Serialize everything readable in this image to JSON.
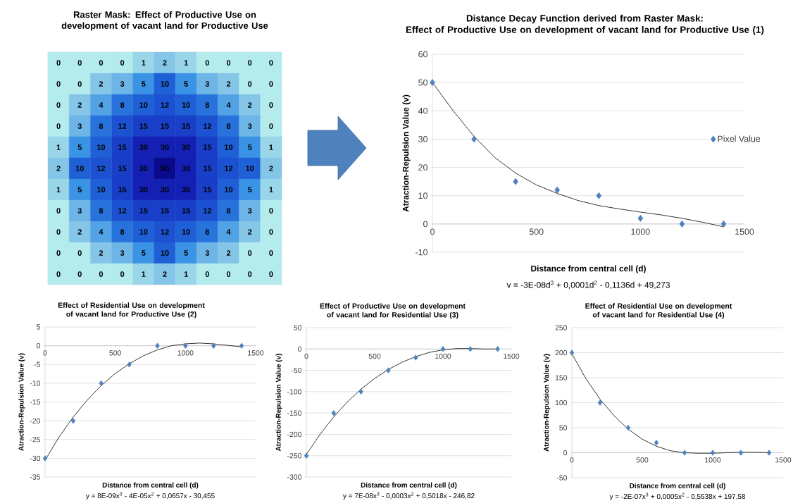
{
  "chart_data": [
    {
      "type": "heatmap",
      "title": "Raster Mask: Effect of Productive Use on development of vacant land for Productive Use",
      "categories": [
        null,
        null,
        null,
        null,
        null,
        null,
        null,
        null,
        null,
        null,
        null
      ],
      "y_categories": [
        null,
        null,
        null,
        null,
        null,
        null,
        null,
        null,
        null,
        null,
        null
      ],
      "data_labels": true,
      "cells": [
        [
          0,
          0,
          0,
          0,
          1,
          2,
          1,
          0,
          0,
          0,
          0
        ],
        [
          0,
          0,
          2,
          3,
          5,
          10,
          5,
          3,
          2,
          0,
          0
        ],
        [
          0,
          2,
          4,
          8,
          10,
          12,
          10,
          8,
          4,
          2,
          0
        ],
        [
          0,
          3,
          8,
          12,
          15,
          15,
          15,
          12,
          8,
          3,
          0
        ],
        [
          1,
          5,
          10,
          15,
          30,
          30,
          30,
          15,
          10,
          5,
          1
        ],
        [
          2,
          10,
          12,
          15,
          30,
          50,
          30,
          15,
          12,
          10,
          2
        ],
        [
          1,
          5,
          10,
          15,
          30,
          30,
          30,
          15,
          10,
          5,
          1
        ],
        [
          0,
          3,
          8,
          12,
          15,
          15,
          15,
          12,
          8,
          3,
          0
        ],
        [
          0,
          2,
          4,
          8,
          10,
          12,
          10,
          8,
          4,
          2,
          0
        ],
        [
          0,
          0,
          2,
          3,
          5,
          10,
          5,
          3,
          2,
          0,
          0
        ],
        [
          0,
          0,
          0,
          0,
          1,
          2,
          1,
          0,
          0,
          0,
          0
        ]
      ]
    },
    {
      "type": "scatter",
      "title": "Distance Decay Function derived from Raster Mask:",
      "subtitle": "Effect of Productive Use on development of vacant land for Productive Use (1)",
      "xlabel": "Distance from central cell (d)",
      "ylabel": "Atraction-Repulsion Value (v)",
      "annotations": [
        "v = -3E-08d$^{3}$ + 0,0001d$^{2}$ - 0,1136d + 49,273"
      ],
      "xlim": [
        0,
        1500
      ],
      "ylim": [
        -10,
        60
      ],
      "xticks": [
        0,
        500,
        1000,
        1500
      ],
      "yticks": [
        -10,
        0,
        10,
        20,
        30,
        40,
        50,
        60
      ],
      "grid": "y",
      "legend": "right",
      "series": [
        {
          "name": "Pixel Value",
          "type": "scatter",
          "marker": "diamond",
          "color": "#4f81bd",
          "x": [
            0,
            200,
            400,
            600,
            800,
            1000,
            1200,
            1400
          ],
          "values": [
            50,
            30,
            15,
            12,
            10,
            2,
            0,
            0
          ]
        },
        {
          "type": "line",
          "marker": "none",
          "color": "#000000",
          "x": [
            0,
            100,
            200,
            300,
            400,
            500,
            600,
            700,
            800,
            900,
            1000,
            1100,
            1200,
            1300,
            1400
          ],
          "values": [
            50,
            40,
            31,
            23.5,
            18,
            13.8,
            10.8,
            8.3,
            6.5,
            5.3,
            4.2,
            3.2,
            2,
            0.6,
            -1
          ]
        }
      ]
    },
    {
      "type": "scatter",
      "title": "Effect of Residential Use on development of vacant land for Productive Use (2)",
      "xlabel": "Distance from central cell (d)",
      "ylabel": "Atraction-Repulsion Value (v)",
      "annotations": [
        "y = 8E-09x$^{3}$ - 4E-05x$^{2}$ + 0,0657x - 30,455"
      ],
      "xlim": [
        0,
        1500
      ],
      "ylim": [
        -35,
        5
      ],
      "xticks": [
        0,
        500,
        1000,
        1500
      ],
      "yticks": [
        -35,
        -30,
        -25,
        -20,
        -15,
        -10,
        -5,
        0,
        5
      ],
      "grid": "y",
      "series": [
        {
          "type": "scatter",
          "marker": "diamond",
          "color": "#4f81bd",
          "x": [
            0,
            200,
            400,
            600,
            800,
            1000,
            1200,
            1400
          ],
          "values": [
            -30,
            -20,
            -10,
            -5,
            0,
            0,
            0,
            0
          ]
        },
        {
          "type": "line",
          "marker": "none",
          "color": "#000000",
          "x": [
            0,
            100,
            200,
            300,
            400,
            500,
            600,
            700,
            800,
            900,
            1000,
            1100,
            1200,
            1300,
            1400
          ],
          "values": [
            -30.5,
            -24.3,
            -19,
            -14.5,
            -10.6,
            -7.4,
            -4.8,
            -2.7,
            -1.1,
            0,
            0.5,
            0.7,
            0.5,
            0.1,
            -0.3
          ]
        }
      ]
    },
    {
      "type": "scatter",
      "title": "Effect of Productive Use on development of vacant land for Residential Use (3)",
      "xlabel": "Distance from central cell (d)",
      "ylabel": "Atraction-Repulsion Value (v)",
      "annotations": [
        "y = 7E-08x$^{3}$ - 0,0003x$^{2}$ + 0,5018x - 246,82"
      ],
      "xlim": [
        0,
        1500
      ],
      "ylim": [
        -300,
        50
      ],
      "xticks": [
        0,
        500,
        1000,
        1500
      ],
      "yticks": [
        -300,
        -250,
        -200,
        -150,
        -100,
        -50,
        0,
        50
      ],
      "grid": "y",
      "series": [
        {
          "type": "scatter",
          "marker": "diamond",
          "color": "#4f81bd",
          "x": [
            0,
            200,
            400,
            600,
            800,
            1000,
            1200,
            1400
          ],
          "values": [
            -250,
            -150,
            -100,
            -50,
            -20,
            0,
            0,
            0
          ]
        },
        {
          "type": "line",
          "marker": "none",
          "color": "#000000",
          "x": [
            0,
            100,
            200,
            300,
            400,
            500,
            600,
            700,
            800,
            900,
            1000,
            1100,
            1200,
            1300,
            1400
          ],
          "values": [
            -247,
            -200,
            -159,
            -124,
            -94,
            -69,
            -48,
            -31,
            -18,
            -8,
            -2,
            1,
            1,
            0,
            0
          ]
        }
      ]
    },
    {
      "type": "scatter",
      "title": "Effect of Residential Use on development of vacant land for Residential Use (4)",
      "xlabel": "Distance from central cell (d)",
      "ylabel": "Atraction-Repulsion Value (v)",
      "annotations": [
        "y = -2E-07x$^{3}$ + 0,0005x$^{2}$ - 0,5538x + 197,58"
      ],
      "xlim": [
        0,
        1500
      ],
      "ylim": [
        -50,
        250
      ],
      "xticks": [
        0,
        500,
        1000,
        1500
      ],
      "yticks": [
        -50,
        0,
        50,
        100,
        150,
        200,
        250
      ],
      "grid": "y",
      "series": [
        {
          "type": "scatter",
          "marker": "diamond",
          "color": "#4f81bd",
          "x": [
            0,
            200,
            400,
            600,
            800,
            1000,
            1200,
            1400
          ],
          "values": [
            200,
            100,
            50,
            20,
            0,
            0,
            0,
            0
          ]
        },
        {
          "type": "line",
          "marker": "none",
          "color": "#000000",
          "x": [
            0,
            100,
            200,
            300,
            400,
            500,
            600,
            700,
            800,
            900,
            1000,
            1100,
            1200,
            1300,
            1400
          ],
          "values": [
            198,
            148,
            107,
            74,
            47,
            27,
            13,
            4,
            0,
            -1,
            -1,
            0,
            1,
            1,
            0
          ]
        }
      ]
    }
  ]
}
